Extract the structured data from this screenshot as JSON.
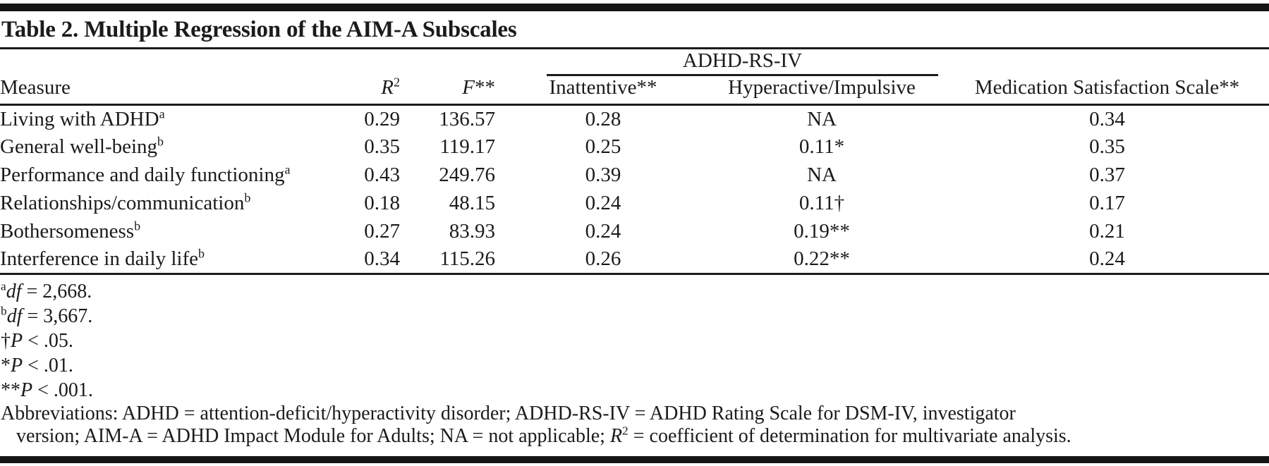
{
  "title": "Table 2. Multiple Regression of the AIM-A Subscales",
  "table": {
    "spanner": {
      "label": "ADHD-RS-IV"
    },
    "columns": {
      "measure": "Measure",
      "r2_base": "R",
      "r2_sup": "2",
      "f_base": "F",
      "f_marker": "**",
      "inattentive": "Inattentive**",
      "hyperactive": "Hyperactive/Impulsive",
      "med_sat": "Medication Satisfaction Scale**"
    },
    "rows": [
      {
        "measure": "Living with ADHD",
        "measure_sup": "a",
        "r2": "0.29",
        "f": "136.57",
        "inattentive": "0.28",
        "hyperactive": "NA",
        "med_sat": "0.34"
      },
      {
        "measure": "General well-being",
        "measure_sup": "b",
        "r2": "0.35",
        "f": "119.17",
        "inattentive": "0.25",
        "hyperactive": "0.11*",
        "med_sat": "0.35"
      },
      {
        "measure": "Performance and daily functioning",
        "measure_sup": "a",
        "r2": "0.43",
        "f": "249.76",
        "inattentive": "0.39",
        "hyperactive": "NA",
        "med_sat": "0.37"
      },
      {
        "measure": "Relationships/communication",
        "measure_sup": "b",
        "r2": "0.18",
        "f": "48.15",
        "inattentive": "0.24",
        "hyperactive": "0.11†",
        "med_sat": "0.17"
      },
      {
        "measure": "Bothersomeness",
        "measure_sup": "b",
        "r2": "0.27",
        "f": "83.93",
        "inattentive": "0.24",
        "hyperactive": "0.19**",
        "med_sat": "0.21"
      },
      {
        "measure": "Interference in daily life",
        "measure_sup": "b",
        "r2": "0.34",
        "f": "115.26",
        "inattentive": "0.26",
        "hyperactive": "0.22**",
        "med_sat": "0.24"
      }
    ]
  },
  "footnotes": [
    {
      "prefix": "",
      "sup": "a",
      "italic": "df",
      "rest": " = 2,668."
    },
    {
      "prefix": "",
      "sup": "b",
      "italic": "df",
      "rest": " = 3,667."
    },
    {
      "prefix": "†",
      "sup": "",
      "italic": "P",
      "rest": " < .05."
    },
    {
      "prefix": "*",
      "sup": "",
      "italic": "P",
      "rest": " < .01."
    },
    {
      "prefix": "**",
      "sup": "",
      "italic": "P",
      "rest": " < .001."
    }
  ],
  "abbreviations": {
    "line1": "Abbreviations: ADHD = attention-deficit/hyperactivity disorder; ADHD-RS-IV = ADHD Rating Scale for DSM-IV, investigator",
    "line2_before_r2": "version; AIM-A = ADHD Impact Module for Adults; NA = not applicable; ",
    "r2_base": "R",
    "r2_sup": "2",
    "line2_after_r2": " = coefficient of determination for multivariate analysis."
  }
}
